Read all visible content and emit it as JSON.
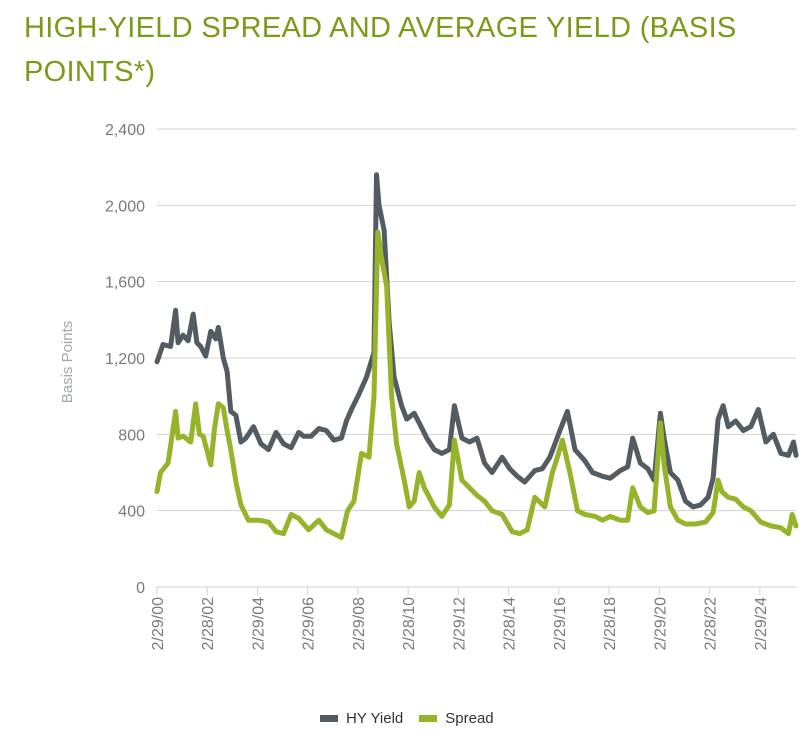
{
  "title": "HIGH-YIELD SPREAD AND AVERAGE YIELD (BASIS POINTS*)",
  "colors": {
    "title": "#7a9a18",
    "hy_yield": "#545c63",
    "spread": "#95b42a",
    "axis": "#cfd3d6"
  },
  "chart_data": {
    "type": "line",
    "title": "HIGH-YIELD SPREAD AND AVERAGE YIELD (BASIS POINTS*)",
    "xlabel": "",
    "ylabel": "Basis Points",
    "ylim": [
      0,
      2400
    ],
    "yticks": [
      0,
      400,
      800,
      1200,
      1600,
      2000,
      2400
    ],
    "ytick_labels": [
      "0",
      "400",
      "800",
      "1,200",
      "1,600",
      "2,000",
      "2,400"
    ],
    "xlim": [
      2000.16,
      2025.6
    ],
    "xticks": [
      2000.16,
      2002.16,
      2004.16,
      2006.16,
      2008.16,
      2010.16,
      2012.16,
      2014.16,
      2016.16,
      2018.16,
      2020.16,
      2022.16,
      2024.16
    ],
    "xtick_labels": [
      "2/29/00",
      "2/28/02",
      "2/29/04",
      "2/29/06",
      "2/29/08",
      "2/28/10",
      "2/29/12",
      "2/28/14",
      "2/29/16",
      "2/28/18",
      "2/29/20",
      "2/28/22",
      "2/29/24"
    ],
    "legend_position": "bottom-center",
    "series": [
      {
        "name": "HY Yield",
        "x": [
          2000.16,
          2000.4,
          2000.7,
          2000.9,
          2001.0,
          2001.2,
          2001.4,
          2001.6,
          2001.75,
          2001.9,
          2002.1,
          2002.3,
          2002.5,
          2002.6,
          2002.8,
          2002.95,
          2003.1,
          2003.3,
          2003.5,
          2003.7,
          2004.0,
          2004.3,
          2004.6,
          2004.9,
          2005.2,
          2005.5,
          2005.8,
          2006.0,
          2006.3,
          2006.6,
          2006.9,
          2007.2,
          2007.5,
          2007.7,
          2007.9,
          2008.2,
          2008.5,
          2008.8,
          2008.9,
          2009.0,
          2009.2,
          2009.4,
          2009.6,
          2009.9,
          2010.1,
          2010.4,
          2010.6,
          2010.9,
          2011.2,
          2011.5,
          2011.8,
          2012.0,
          2012.3,
          2012.6,
          2012.9,
          2013.2,
          2013.5,
          2013.9,
          2014.2,
          2014.5,
          2014.8,
          2015.2,
          2015.5,
          2015.8,
          2016.0,
          2016.2,
          2016.5,
          2016.8,
          2017.2,
          2017.5,
          2017.9,
          2018.2,
          2018.6,
          2018.9,
          2019.1,
          2019.4,
          2019.7,
          2019.95,
          2020.2,
          2020.35,
          2020.6,
          2020.9,
          2021.2,
          2021.5,
          2021.8,
          2022.1,
          2022.3,
          2022.5,
          2022.7,
          2022.9,
          2023.2,
          2023.5,
          2023.8,
          2024.1,
          2024.4,
          2024.7,
          2025.0,
          2025.3,
          2025.5,
          2025.6
        ],
        "values": [
          1180,
          1270,
          1260,
          1450,
          1280,
          1320,
          1290,
          1430,
          1280,
          1260,
          1210,
          1340,
          1300,
          1360,
          1200,
          1130,
          920,
          900,
          760,
          780,
          840,
          750,
          720,
          810,
          750,
          730,
          810,
          790,
          790,
          830,
          820,
          770,
          780,
          870,
          930,
          1010,
          1100,
          1230,
          2160,
          2000,
          1870,
          1390,
          1100,
          950,
          880,
          910,
          860,
          780,
          720,
          700,
          720,
          950,
          780,
          760,
          780,
          650,
          600,
          680,
          620,
          580,
          550,
          610,
          620,
          680,
          750,
          820,
          920,
          720,
          660,
          600,
          580,
          570,
          610,
          630,
          780,
          650,
          620,
          560,
          910,
          780,
          600,
          560,
          450,
          420,
          430,
          470,
          570,
          880,
          950,
          840,
          870,
          820,
          840,
          930,
          760,
          800,
          700,
          690,
          760,
          690
        ]
      },
      {
        "name": "Spread",
        "x": [
          2000.16,
          2000.3,
          2000.6,
          2000.9,
          2001.0,
          2001.2,
          2001.5,
          2001.7,
          2001.85,
          2002.0,
          2002.3,
          2002.45,
          2002.6,
          2002.8,
          2002.95,
          2003.1,
          2003.3,
          2003.5,
          2003.8,
          2004.2,
          2004.6,
          2004.9,
          2005.2,
          2005.5,
          2005.8,
          2006.2,
          2006.6,
          2006.9,
          2007.2,
          2007.5,
          2007.75,
          2008.0,
          2008.3,
          2008.6,
          2008.8,
          2008.95,
          2009.1,
          2009.3,
          2009.5,
          2009.7,
          2010.0,
          2010.2,
          2010.4,
          2010.6,
          2010.8,
          2011.2,
          2011.5,
          2011.8,
          2012.0,
          2012.3,
          2012.6,
          2012.9,
          2013.2,
          2013.5,
          2013.9,
          2014.3,
          2014.6,
          2014.9,
          2015.2,
          2015.6,
          2015.9,
          2016.1,
          2016.3,
          2016.6,
          2016.9,
          2017.2,
          2017.6,
          2017.9,
          2018.2,
          2018.6,
          2018.9,
          2019.1,
          2019.4,
          2019.7,
          2019.95,
          2020.2,
          2020.35,
          2020.6,
          2020.9,
          2021.2,
          2021.6,
          2022.0,
          2022.3,
          2022.5,
          2022.65,
          2022.9,
          2023.2,
          2023.5,
          2023.8,
          2024.2,
          2024.6,
          2025.0,
          2025.3,
          2025.45,
          2025.6
        ],
        "values": [
          500,
          600,
          650,
          920,
          780,
          790,
          760,
          960,
          800,
          790,
          640,
          830,
          960,
          940,
          820,
          720,
          550,
          430,
          350,
          350,
          340,
          290,
          280,
          380,
          360,
          300,
          350,
          300,
          280,
          260,
          400,
          450,
          700,
          680,
          1000,
          1860,
          1720,
          1580,
          1000,
          750,
          560,
          420,
          450,
          600,
          520,
          420,
          370,
          430,
          770,
          560,
          520,
          480,
          450,
          400,
          380,
          290,
          280,
          300,
          470,
          420,
          600,
          680,
          770,
          600,
          400,
          380,
          370,
          350,
          370,
          350,
          350,
          520,
          420,
          390,
          400,
          860,
          640,
          420,
          350,
          330,
          330,
          340,
          390,
          560,
          500,
          470,
          460,
          420,
          400,
          340,
          320,
          310,
          280,
          380,
          320
        ]
      }
    ]
  }
}
